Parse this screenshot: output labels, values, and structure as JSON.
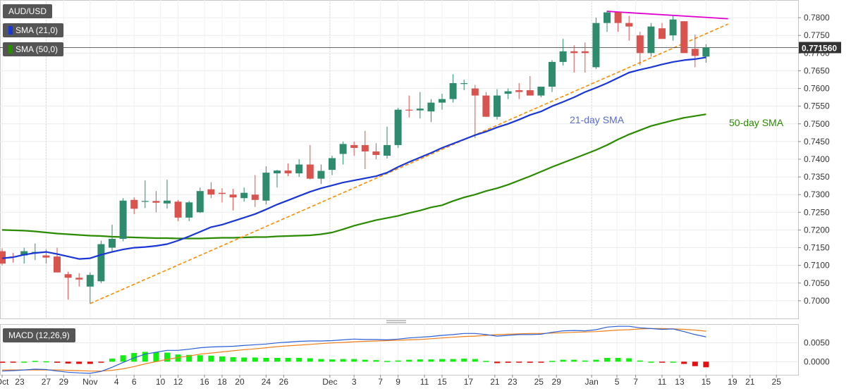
{
  "legend": {
    "symbol": "AUD/USD",
    "sma21": "SMA (21,0)",
    "sma50": "SMA (50,0)",
    "macd": "MACD (12,26,9)"
  },
  "colors": {
    "bull": "#2e8b6e",
    "bear": "#d9534f",
    "sma21": "#1a36d6",
    "sma50": "#2a8a00",
    "trend_support": "#ff8c00",
    "trend_resist": "#e000d0",
    "macd_line": "#2a5fd6",
    "signal_line": "#ef7f1a",
    "hist_pos": "#11ee11",
    "hist_neg": "#e01010",
    "price_tag": "#333333"
  },
  "chart_data": [
    {
      "type": "candlestick",
      "title": "AUD/USD",
      "ylim": [
        0.695,
        0.785
      ],
      "y_ticks": [
        "0.7000",
        "0.7050",
        "0.7100",
        "0.7150",
        "0.7200",
        "0.7250",
        "0.7300",
        "0.7350",
        "0.7400",
        "0.7450",
        "0.7500",
        "0.7550",
        "0.7600",
        "0.7650",
        "0.7700",
        "0.7750",
        "0.7800"
      ],
      "x_ticks": [
        "Oct",
        "23",
        "27",
        "29",
        "Nov",
        "4",
        "6",
        "10",
        "12",
        "16",
        "18",
        "20",
        "24",
        "26",
        "Dec",
        "3",
        "7",
        "9",
        "11",
        "15",
        "17",
        "21",
        "23",
        "25",
        "29",
        "Jan",
        "5",
        "7",
        "11",
        "13",
        "15",
        "19",
        "21",
        "25"
      ],
      "current_price": "0.771560",
      "annotations": [
        "21-day SMA",
        "50-day SMA"
      ],
      "candles": [
        {
          "o": 0.714,
          "h": 0.7148,
          "l": 0.71,
          "c": 0.7105
        },
        {
          "o": 0.7125,
          "h": 0.7135,
          "l": 0.7108,
          "c": 0.7123
        },
        {
          "o": 0.7128,
          "h": 0.715,
          "l": 0.7105,
          "c": 0.714
        },
        {
          "o": 0.7138,
          "h": 0.7162,
          "l": 0.7115,
          "c": 0.7138
        },
        {
          "o": 0.7128,
          "h": 0.7145,
          "l": 0.7105,
          "c": 0.7122
        },
        {
          "o": 0.7125,
          "h": 0.715,
          "l": 0.708,
          "c": 0.708
        },
        {
          "o": 0.7075,
          "h": 0.7082,
          "l": 0.7003,
          "c": 0.7065
        },
        {
          "o": 0.7065,
          "h": 0.7078,
          "l": 0.704,
          "c": 0.706
        },
        {
          "o": 0.704,
          "h": 0.708,
          "l": 0.6992,
          "c": 0.7073
        },
        {
          "o": 0.7055,
          "h": 0.717,
          "l": 0.705,
          "c": 0.716
        },
        {
          "o": 0.715,
          "h": 0.7215,
          "l": 0.714,
          "c": 0.7175
        },
        {
          "o": 0.7175,
          "h": 0.729,
          "l": 0.7168,
          "c": 0.7283
        },
        {
          "o": 0.7285,
          "h": 0.7292,
          "l": 0.7245,
          "c": 0.726
        },
        {
          "o": 0.728,
          "h": 0.734,
          "l": 0.7262,
          "c": 0.7282
        },
        {
          "o": 0.7282,
          "h": 0.731,
          "l": 0.725,
          "c": 0.7277
        },
        {
          "o": 0.7275,
          "h": 0.7342,
          "l": 0.726,
          "c": 0.7283
        },
        {
          "o": 0.728,
          "h": 0.7285,
          "l": 0.7225,
          "c": 0.7235
        },
        {
          "o": 0.7235,
          "h": 0.7282,
          "l": 0.7225,
          "c": 0.7278
        },
        {
          "o": 0.725,
          "h": 0.732,
          "l": 0.7248,
          "c": 0.731
        },
        {
          "o": 0.7315,
          "h": 0.7335,
          "l": 0.729,
          "c": 0.73
        },
        {
          "o": 0.7305,
          "h": 0.7318,
          "l": 0.7278,
          "c": 0.7302
        },
        {
          "o": 0.73,
          "h": 0.7316,
          "l": 0.7255,
          "c": 0.7292
        },
        {
          "o": 0.729,
          "h": 0.732,
          "l": 0.728,
          "c": 0.7305
        },
        {
          "o": 0.73,
          "h": 0.7355,
          "l": 0.7265,
          "c": 0.7285
        },
        {
          "o": 0.7283,
          "h": 0.738,
          "l": 0.7272,
          "c": 0.7362
        },
        {
          "o": 0.736,
          "h": 0.737,
          "l": 0.732,
          "c": 0.7368
        },
        {
          "o": 0.7368,
          "h": 0.7388,
          "l": 0.7352,
          "c": 0.736
        },
        {
          "o": 0.736,
          "h": 0.74,
          "l": 0.735,
          "c": 0.7385
        },
        {
          "o": 0.7385,
          "h": 0.744,
          "l": 0.7343,
          "c": 0.7345
        },
        {
          "o": 0.7345,
          "h": 0.7385,
          "l": 0.733,
          "c": 0.7367
        },
        {
          "o": 0.737,
          "h": 0.741,
          "l": 0.7355,
          "c": 0.7403
        },
        {
          "o": 0.7415,
          "h": 0.745,
          "l": 0.7385,
          "c": 0.7443
        },
        {
          "o": 0.744,
          "h": 0.745,
          "l": 0.741,
          "c": 0.7432
        },
        {
          "o": 0.744,
          "h": 0.748,
          "l": 0.7372,
          "c": 0.7422
        },
        {
          "o": 0.7422,
          "h": 0.7445,
          "l": 0.74,
          "c": 0.7412
        },
        {
          "o": 0.741,
          "h": 0.7492,
          "l": 0.7402,
          "c": 0.744
        },
        {
          "o": 0.744,
          "h": 0.7545,
          "l": 0.7432,
          "c": 0.754
        },
        {
          "o": 0.754,
          "h": 0.758,
          "l": 0.7518,
          "c": 0.7538
        },
        {
          "o": 0.7538,
          "h": 0.759,
          "l": 0.7515,
          "c": 0.7543
        },
        {
          "o": 0.7535,
          "h": 0.757,
          "l": 0.7505,
          "c": 0.756
        },
        {
          "o": 0.756,
          "h": 0.7585,
          "l": 0.754,
          "c": 0.757
        },
        {
          "o": 0.757,
          "h": 0.764,
          "l": 0.756,
          "c": 0.7615
        },
        {
          "o": 0.7615,
          "h": 0.7625,
          "l": 0.7595,
          "c": 0.7615
        },
        {
          "o": 0.76,
          "h": 0.761,
          "l": 0.746,
          "c": 0.758
        },
        {
          "o": 0.758,
          "h": 0.759,
          "l": 0.752,
          "c": 0.752
        },
        {
          "o": 0.752,
          "h": 0.7598,
          "l": 0.7512,
          "c": 0.758
        },
        {
          "o": 0.7585,
          "h": 0.76,
          "l": 0.757,
          "c": 0.7592
        },
        {
          "o": 0.7595,
          "h": 0.7615,
          "l": 0.757,
          "c": 0.759
        },
        {
          "o": 0.7595,
          "h": 0.7635,
          "l": 0.758,
          "c": 0.758
        },
        {
          "o": 0.758,
          "h": 0.76,
          "l": 0.7575,
          "c": 0.7605
        },
        {
          "o": 0.7605,
          "h": 0.768,
          "l": 0.759,
          "c": 0.7675
        },
        {
          "o": 0.7675,
          "h": 0.774,
          "l": 0.7665,
          "c": 0.7705
        },
        {
          "o": 0.7705,
          "h": 0.7722,
          "l": 0.7645,
          "c": 0.77
        },
        {
          "o": 0.7705,
          "h": 0.773,
          "l": 0.7645,
          "c": 0.77
        },
        {
          "o": 0.766,
          "h": 0.78,
          "l": 0.7655,
          "c": 0.7785
        },
        {
          "o": 0.7785,
          "h": 0.782,
          "l": 0.776,
          "c": 0.7815
        },
        {
          "o": 0.7815,
          "h": 0.7815,
          "l": 0.776,
          "c": 0.7785
        },
        {
          "o": 0.7785,
          "h": 0.7805,
          "l": 0.7735,
          "c": 0.7775
        },
        {
          "o": 0.775,
          "h": 0.776,
          "l": 0.7665,
          "c": 0.77
        },
        {
          "o": 0.77,
          "h": 0.7785,
          "l": 0.769,
          "c": 0.7775
        },
        {
          "o": 0.777,
          "h": 0.7785,
          "l": 0.7745,
          "c": 0.774
        },
        {
          "o": 0.775,
          "h": 0.7805,
          "l": 0.7735,
          "c": 0.7795
        },
        {
          "o": 0.779,
          "h": 0.779,
          "l": 0.77,
          "c": 0.77
        },
        {
          "o": 0.7712,
          "h": 0.7752,
          "l": 0.766,
          "c": 0.7692
        },
        {
          "o": 0.769,
          "h": 0.7725,
          "l": 0.7673,
          "c": 0.7716
        }
      ],
      "sma21": [
        0.712,
        0.7123,
        0.713,
        0.7135,
        0.7138,
        0.7132,
        0.7125,
        0.7118,
        0.712,
        0.713,
        0.7138,
        0.7145,
        0.715,
        0.7152,
        0.7155,
        0.716,
        0.717,
        0.7182,
        0.7195,
        0.7208,
        0.7215,
        0.7225,
        0.7235,
        0.7245,
        0.7258,
        0.7272,
        0.7284,
        0.7296,
        0.7308,
        0.7318,
        0.7326,
        0.7334,
        0.734,
        0.7346,
        0.7352,
        0.7362,
        0.7378,
        0.7392,
        0.7405,
        0.7418,
        0.7432,
        0.7444,
        0.7456,
        0.7468,
        0.7478,
        0.749,
        0.75,
        0.7512,
        0.7525,
        0.7535,
        0.755,
        0.7562,
        0.7575,
        0.759,
        0.7602,
        0.7615,
        0.763,
        0.7645,
        0.7653,
        0.766,
        0.7668,
        0.7675,
        0.768,
        0.7683,
        0.7688
      ],
      "sma50": [
        0.72,
        0.7199,
        0.7198,
        0.7196,
        0.7193,
        0.719,
        0.7188,
        0.7186,
        0.7184,
        0.7183,
        0.7181,
        0.718,
        0.7179,
        0.7178,
        0.7177,
        0.7177,
        0.7176,
        0.7176,
        0.7176,
        0.7177,
        0.7178,
        0.7178,
        0.7179,
        0.718,
        0.718,
        0.7182,
        0.7183,
        0.7184,
        0.7185,
        0.7188,
        0.7193,
        0.7202,
        0.7212,
        0.722,
        0.7228,
        0.7234,
        0.724,
        0.7248,
        0.7255,
        0.7264,
        0.727,
        0.7282,
        0.7292,
        0.73,
        0.731,
        0.7318,
        0.7328,
        0.734,
        0.7352,
        0.7365,
        0.7378,
        0.739,
        0.7402,
        0.7414,
        0.7426,
        0.744,
        0.7456,
        0.747,
        0.7482,
        0.7494,
        0.7502,
        0.751,
        0.7517,
        0.7522,
        0.7527
      ],
      "support_line": {
        "from": [
          8,
          0.6992
        ],
        "to": [
          66,
          0.7782
        ]
      },
      "resistance_line": {
        "from": [
          55,
          0.7818
        ],
        "to": [
          66,
          0.7797
        ]
      }
    },
    {
      "type": "macd",
      "title": "MACD (12,26,9)",
      "ylim": [
        -0.0035,
        0.01
      ],
      "y_ticks": [
        "0.0000",
        "0.0050"
      ],
      "macd": [
        -0.0025,
        -0.0024,
        -0.0022,
        -0.002,
        -0.0021,
        -0.0025,
        -0.0028,
        -0.003,
        -0.0031,
        -0.0026,
        -0.0015,
        -0.0002,
        0.001,
        0.002,
        0.0025,
        0.003,
        0.003,
        0.0033,
        0.0037,
        0.0039,
        0.004,
        0.0041,
        0.0043,
        0.0045,
        0.0047,
        0.005,
        0.0052,
        0.0054,
        0.0055,
        0.0055,
        0.0056,
        0.0058,
        0.006,
        0.0059,
        0.0059,
        0.0058,
        0.006,
        0.0063,
        0.0065,
        0.0067,
        0.007,
        0.0072,
        0.0075,
        0.0075,
        0.0072,
        0.0068,
        0.007,
        0.0072,
        0.0072,
        0.0073,
        0.0078,
        0.0082,
        0.0083,
        0.0082,
        0.0085,
        0.0092,
        0.0094,
        0.0094,
        0.009,
        0.0088,
        0.0086,
        0.0087,
        0.008,
        0.0072,
        0.0066
      ],
      "signal": [
        -0.0022,
        -0.0022,
        -0.0022,
        -0.0022,
        -0.0022,
        -0.0022,
        -0.0023,
        -0.0024,
        -0.0025,
        -0.0025,
        -0.0023,
        -0.0019,
        -0.0013,
        -0.0006,
        0.0,
        0.0006,
        0.0011,
        0.0015,
        0.002,
        0.0023,
        0.0026,
        0.0029,
        0.0032,
        0.0034,
        0.0037,
        0.004,
        0.0042,
        0.0044,
        0.0046,
        0.0048,
        0.005,
        0.0051,
        0.0053,
        0.0054,
        0.0055,
        0.0056,
        0.0057,
        0.0058,
        0.0059,
        0.0061,
        0.0063,
        0.0065,
        0.0067,
        0.0068,
        0.007,
        0.0072,
        0.0073,
        0.0074,
        0.0075,
        0.0075,
        0.0076,
        0.0077,
        0.0078,
        0.0079,
        0.008,
        0.0082,
        0.0084,
        0.0085,
        0.0087,
        0.0088,
        0.0088,
        0.0087,
        0.0086,
        0.0084,
        0.0081
      ],
      "histogram": [
        -0.0003,
        -0.0002,
        0.0,
        0.0002,
        0.0001,
        -0.0003,
        -0.0005,
        -0.0006,
        -0.0006,
        -0.0001,
        0.0008,
        0.0017,
        0.0023,
        0.0026,
        0.0025,
        0.0024,
        0.0019,
        0.0018,
        0.0017,
        0.0016,
        0.0014,
        0.0012,
        0.0011,
        0.0011,
        0.001,
        0.001,
        0.001,
        0.001,
        0.0009,
        0.0007,
        0.0006,
        0.0007,
        0.0007,
        0.0005,
        0.0004,
        0.0002,
        0.0003,
        0.0005,
        0.0006,
        0.0006,
        0.0007,
        0.0007,
        0.0008,
        0.0007,
        0.0002,
        -0.0004,
        -0.0003,
        -0.0002,
        -0.0003,
        -0.0002,
        0.0002,
        0.0005,
        0.0005,
        0.0003,
        0.0005,
        0.001,
        0.001,
        0.0009,
        0.0003,
        0.0,
        -0.0002,
        0.0,
        -0.0006,
        -0.0012,
        -0.0015
      ]
    }
  ]
}
